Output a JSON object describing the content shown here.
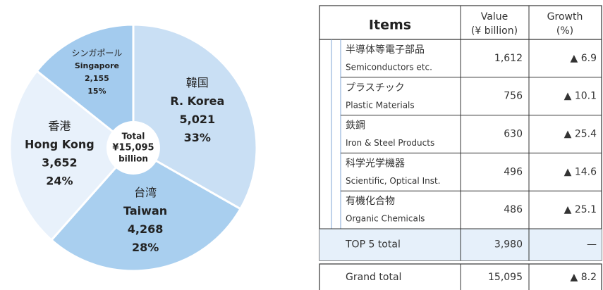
{
  "chart_data": {
    "type": "pie",
    "categories": [
      "R. Korea",
      "Taiwan",
      "Hong Kong",
      "Singapore"
    ],
    "categories_ja": [
      "韓国",
      "台湾",
      "香港",
      "シンガポール"
    ],
    "values": [
      5021,
      4268,
      3652,
      2155
    ],
    "value_labels": [
      "5,021",
      "4,268",
      "3,652",
      "2,155"
    ],
    "shares": [
      33,
      28,
      24,
      15
    ],
    "share_labels": [
      "33%",
      "28%",
      "24%",
      "15%"
    ],
    "colors": [
      "#c9dff4",
      "#a9cfef",
      "#e8f1fb",
      "#a3cbee"
    ],
    "center_label": [
      "Total",
      "¥15,095",
      "billion"
    ]
  },
  "table": {
    "header": [
      "Items",
      "Value",
      "(¥ billion)",
      "Growth",
      "(%)"
    ],
    "rows": [
      {
        "ja": "半導体等電子部品",
        "en": "Semiconductors etc.",
        "value": "1,612",
        "growth": "▲ 6.9"
      },
      {
        "ja": "プラスチック",
        "en": "Plastic Materials",
        "value": "756",
        "growth": "▲ 10.1"
      },
      {
        "ja": "鉄鋼",
        "en": "Iron & Steel Products",
        "value": "630",
        "growth": "▲ 25.4"
      },
      {
        "ja": "科学光学機器",
        "en": "Scientific, Optical Inst.",
        "value": "496",
        "growth": "▲ 14.6"
      },
      {
        "ja": "有機化合物",
        "en": "Organic Chemicals",
        "value": "486",
        "growth": "▲ 25.1"
      }
    ],
    "top5": {
      "label": "TOP 5 total",
      "value": "3,980",
      "growth": "—"
    },
    "grand": {
      "label": "Grand total",
      "value": "15,095",
      "growth": "▲ 8.2"
    }
  }
}
